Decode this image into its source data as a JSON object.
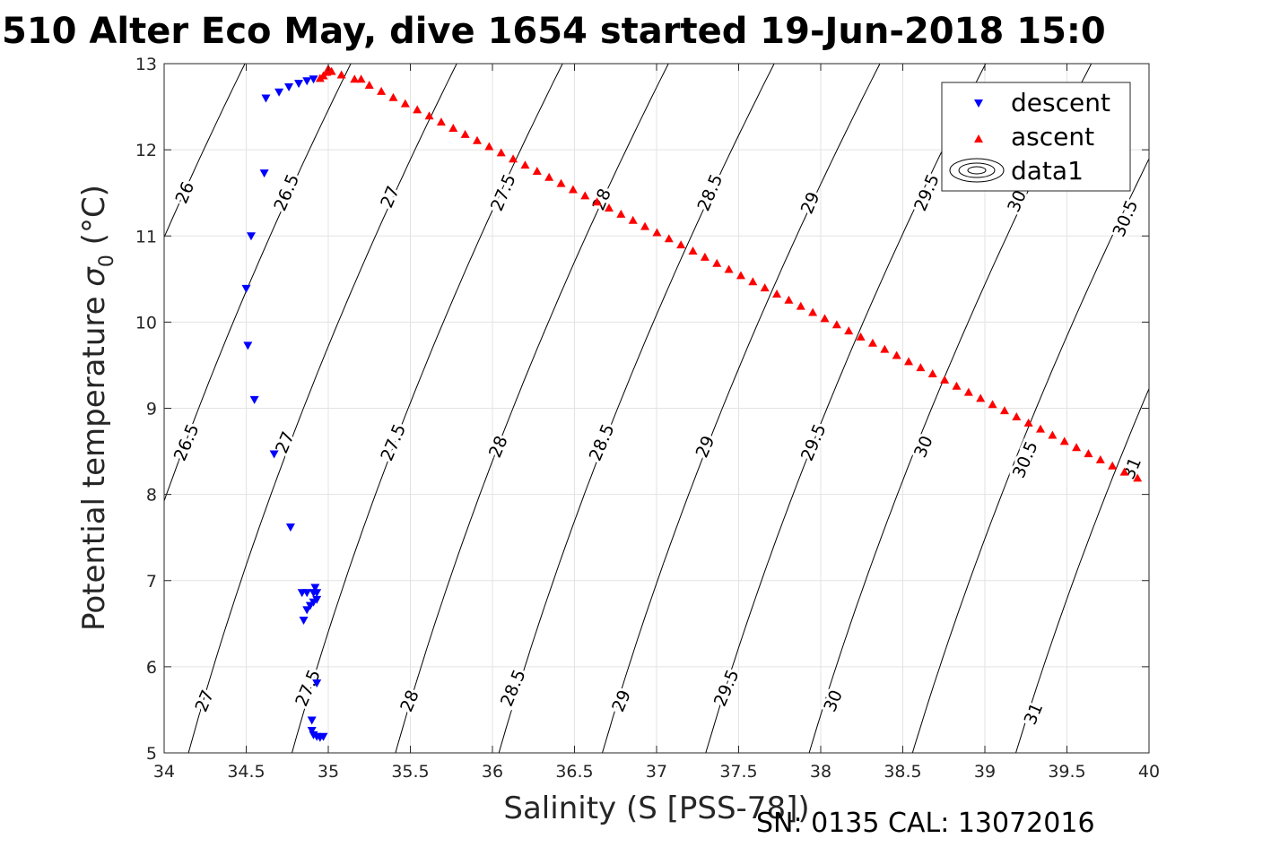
{
  "title": "510 Alter Eco May, dive 1654 started 19-Jun-2018 15:0",
  "footer": "SN: 0135  CAL: 13072016",
  "chart_data": {
    "type": "scatter",
    "title": "510 Alter Eco May, dive 1654 started 19-Jun-2018 15:0",
    "xlabel": "Salinity (S [PSS-78])",
    "ylabel_main": "Potential temperature ",
    "ylabel_sigma": "σ",
    "ylabel_sub": "0",
    "ylabel_unit": " (°C)",
    "xlim": [
      34,
      40
    ],
    "ylim": [
      5,
      13
    ],
    "xticks": [
      34,
      34.5,
      35,
      35.5,
      36,
      36.5,
      37,
      37.5,
      38,
      38.5,
      39,
      39.5,
      40
    ],
    "yticks": [
      5,
      6,
      7,
      8,
      9,
      10,
      11,
      12,
      13
    ],
    "xtick_labels": [
      "34",
      "34.5",
      "35",
      "35.5",
      "36",
      "36.5",
      "37",
      "37.5",
      "38",
      "38.5",
      "39",
      "39.5",
      "40"
    ],
    "ytick_labels": [
      "5",
      "6",
      "7",
      "8",
      "9",
      "10",
      "11",
      "12",
      "13"
    ],
    "grid": true,
    "legend_position": "top-right",
    "legend": [
      "descent",
      "ascent",
      "data1"
    ],
    "series": [
      {
        "name": "descent",
        "marker": "triangle-down",
        "color": "#0000ff",
        "points": [
          [
            34.62,
            12.6
          ],
          [
            34.7,
            12.67
          ],
          [
            34.76,
            12.73
          ],
          [
            34.82,
            12.77
          ],
          [
            34.87,
            12.8
          ],
          [
            34.91,
            12.82
          ],
          [
            34.61,
            11.73
          ],
          [
            34.53,
            11.0
          ],
          [
            34.5,
            10.39
          ],
          [
            34.51,
            9.73
          ],
          [
            34.55,
            9.1
          ],
          [
            34.67,
            8.47
          ],
          [
            34.77,
            7.62
          ],
          [
            34.84,
            6.86
          ],
          [
            34.87,
            6.86
          ],
          [
            34.91,
            6.86
          ],
          [
            34.92,
            6.92
          ],
          [
            34.93,
            6.86
          ],
          [
            34.93,
            6.78
          ],
          [
            34.91,
            6.75
          ],
          [
            34.89,
            6.71
          ],
          [
            34.87,
            6.66
          ],
          [
            34.85,
            6.54
          ],
          [
            34.93,
            5.81
          ],
          [
            34.9,
            5.38
          ],
          [
            34.9,
            5.26
          ],
          [
            34.91,
            5.21
          ],
          [
            34.93,
            5.19
          ],
          [
            34.95,
            5.18
          ],
          [
            34.97,
            5.19
          ]
        ]
      },
      {
        "name": "ascent",
        "marker": "triangle-up",
        "color": "#ff0000",
        "points": [
          [
            34.95,
            12.83
          ],
          [
            34.97,
            12.86
          ],
          [
            34.99,
            12.9
          ],
          [
            35.0,
            12.94
          ],
          [
            35.02,
            12.91
          ],
          [
            35.08,
            12.87
          ],
          [
            35.16,
            12.82
          ],
          [
            35.2,
            12.82
          ],
          [
            39.93,
            8.19
          ]
        ]
      }
    ],
    "ascent_trend": {
      "from": [
        35.25,
        12.75
      ],
      "to": [
        39.85,
        8.26
      ],
      "count": 64
    },
    "contour_levels": [
      26,
      26.5,
      27,
      27.5,
      28,
      28.5,
      29,
      29.5,
      30,
      30.5,
      31
    ],
    "contour_labels": [
      {
        "text": "26",
        "s": 34.13,
        "t": 11.5
      },
      {
        "text": "26.5",
        "s": 34.75,
        "t": 11.5
      },
      {
        "text": "27",
        "s": 35.38,
        "t": 11.45
      },
      {
        "text": "27.5",
        "s": 36.07,
        "t": 11.5
      },
      {
        "text": "28",
        "s": 36.67,
        "t": 11.42
      },
      {
        "text": "28.5",
        "s": 37.33,
        "t": 11.5
      },
      {
        "text": "29",
        "s": 37.94,
        "t": 11.38
      },
      {
        "text": "29.5",
        "s": 38.65,
        "t": 11.5
      },
      {
        "text": "30",
        "s": 39.2,
        "t": 11.4
      },
      {
        "text": "30.5",
        "s": 39.86,
        "t": 11.2
      },
      {
        "text": "26.5",
        "s": 34.14,
        "t": 8.6
      },
      {
        "text": "27",
        "s": 34.74,
        "t": 8.6
      },
      {
        "text": "27.5",
        "s": 35.4,
        "t": 8.6
      },
      {
        "text": "28",
        "s": 36.04,
        "t": 8.55
      },
      {
        "text": "28.5",
        "s": 36.67,
        "t": 8.6
      },
      {
        "text": "29",
        "s": 37.3,
        "t": 8.55
      },
      {
        "text": "29.5",
        "s": 37.96,
        "t": 8.6
      },
      {
        "text": "30",
        "s": 38.63,
        "t": 8.55
      },
      {
        "text": "30.5",
        "s": 39.25,
        "t": 8.4
      },
      {
        "text": "31",
        "s": 39.9,
        "t": 8.3
      },
      {
        "text": "27",
        "s": 34.25,
        "t": 5.6
      },
      {
        "text": "27.5",
        "s": 34.88,
        "t": 5.75
      },
      {
        "text": "28",
        "s": 35.5,
        "t": 5.6
      },
      {
        "text": "28.5",
        "s": 36.13,
        "t": 5.75
      },
      {
        "text": "29",
        "s": 36.79,
        "t": 5.6
      },
      {
        "text": "29.5",
        "s": 37.43,
        "t": 5.75
      },
      {
        "text": "30",
        "s": 38.08,
        "t": 5.6
      },
      {
        "text": "31",
        "s": 39.3,
        "t": 5.45
      }
    ],
    "colors": {
      "descent": "#0000ff",
      "ascent": "#ff0000",
      "contour": "#000000",
      "grid": "#e3e3e3"
    }
  }
}
